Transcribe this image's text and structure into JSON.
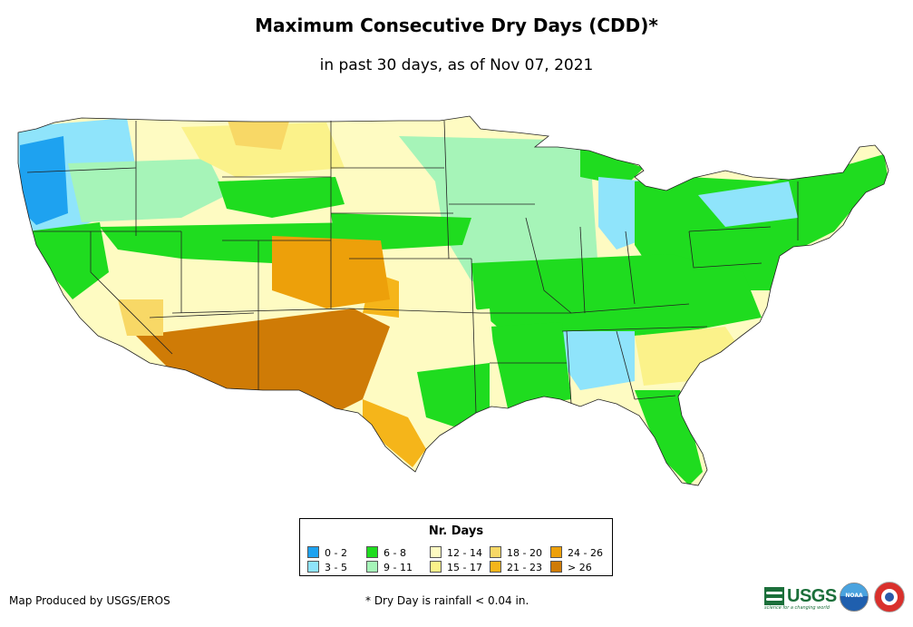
{
  "title": "Maximum Consecutive Dry Days (CDD)*",
  "subtitle": "in past 30 days, as of Nov 07, 2021",
  "legend": {
    "title": "Nr. Days",
    "items": [
      {
        "label": "0 - 2",
        "color": "#1ea2f0"
      },
      {
        "label": "3 - 5",
        "color": "#8fe4fb"
      },
      {
        "label": "6 - 8",
        "color": "#1fdc1f"
      },
      {
        "label": "9 - 11",
        "color": "#a6f4b8"
      },
      {
        "label": "12 - 14",
        "color": "#fefbc2"
      },
      {
        "label": "15 - 17",
        "color": "#fbf28a"
      },
      {
        "label": "18 - 20",
        "color": "#f8d866"
      },
      {
        "label": "21 - 23",
        "color": "#f5b51a"
      },
      {
        "label": "24 - 26",
        "color": "#eda00a"
      },
      {
        "label": "> 26",
        "color": "#cf7b06"
      }
    ]
  },
  "credit": "Map Produced by USGS/EROS",
  "footnote": "* Dry Day is rainfall < 0.04 in.",
  "logos": {
    "usgs": "USGS",
    "usgs_tagline": "science for a changing world",
    "noaa": "NOAA",
    "nws": "National Weather Service"
  }
}
